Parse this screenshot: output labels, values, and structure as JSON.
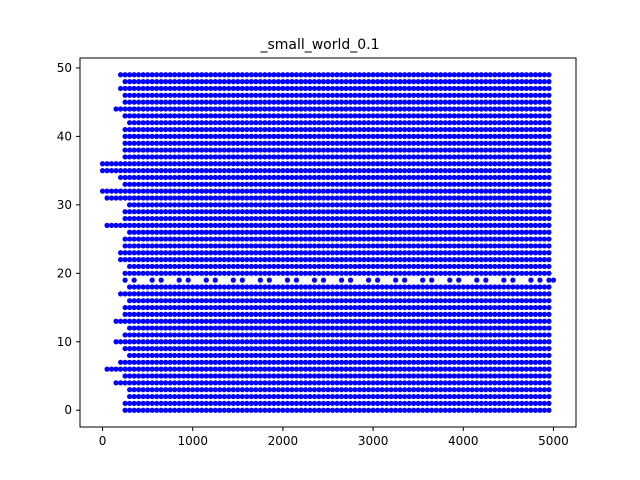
{
  "chart_data": {
    "type": "scatter",
    "title": "_small_world_0.1",
    "xlabel": "",
    "ylabel": "",
    "xlim": [
      -250,
      5250
    ],
    "ylim": [
      -2.45,
      51.45
    ],
    "x_ticks": [
      0,
      1000,
      2000,
      3000,
      4000,
      5000
    ],
    "y_ticks": [
      0,
      10,
      20,
      30,
      40,
      50
    ],
    "grid": false,
    "legend": "none",
    "point_color": "#0000ff",
    "series": [
      {
        "description_source": "dense grid of points: x every 50 from ~200 to ~4950, y every 1 from 0 to 49, with gaps near y=19, x-range start varying by row",
        "rows_x_start": {
          "0": 250,
          "1": 250,
          "2": 300,
          "3": 300,
          "4": 150,
          "5": 250,
          "6": 50,
          "7": 200,
          "8": 300,
          "9": 250,
          "10": 150,
          "11": 250,
          "12": 300,
          "13": 150,
          "14": 250,
          "15": 250,
          "16": 300,
          "17": 200,
          "18": 300,
          "19": 150,
          "20": 250,
          "21": 300,
          "22": 200,
          "23": 200,
          "24": 250,
          "25": 250,
          "26": 300,
          "27": 50,
          "28": 250,
          "29": 250,
          "30": 300,
          "31": 50,
          "32": 0,
          "33": 250,
          "34": 200,
          "35": 0,
          "36": 0,
          "37": 250,
          "38": 250,
          "39": 250,
          "40": 250,
          "41": 250,
          "42": 300,
          "43": 250,
          "44": 150,
          "45": 250,
          "46": 250,
          "47": 200,
          "48": 250,
          "49": 200
        },
        "x_step": 50,
        "x_end": 4950,
        "gap_rows": [
          19
        ],
        "gap_row_spacing": 100,
        "extra_points": [
          [
            5000,
            19
          ],
          [
            4950,
            19
          ]
        ]
      }
    ]
  }
}
